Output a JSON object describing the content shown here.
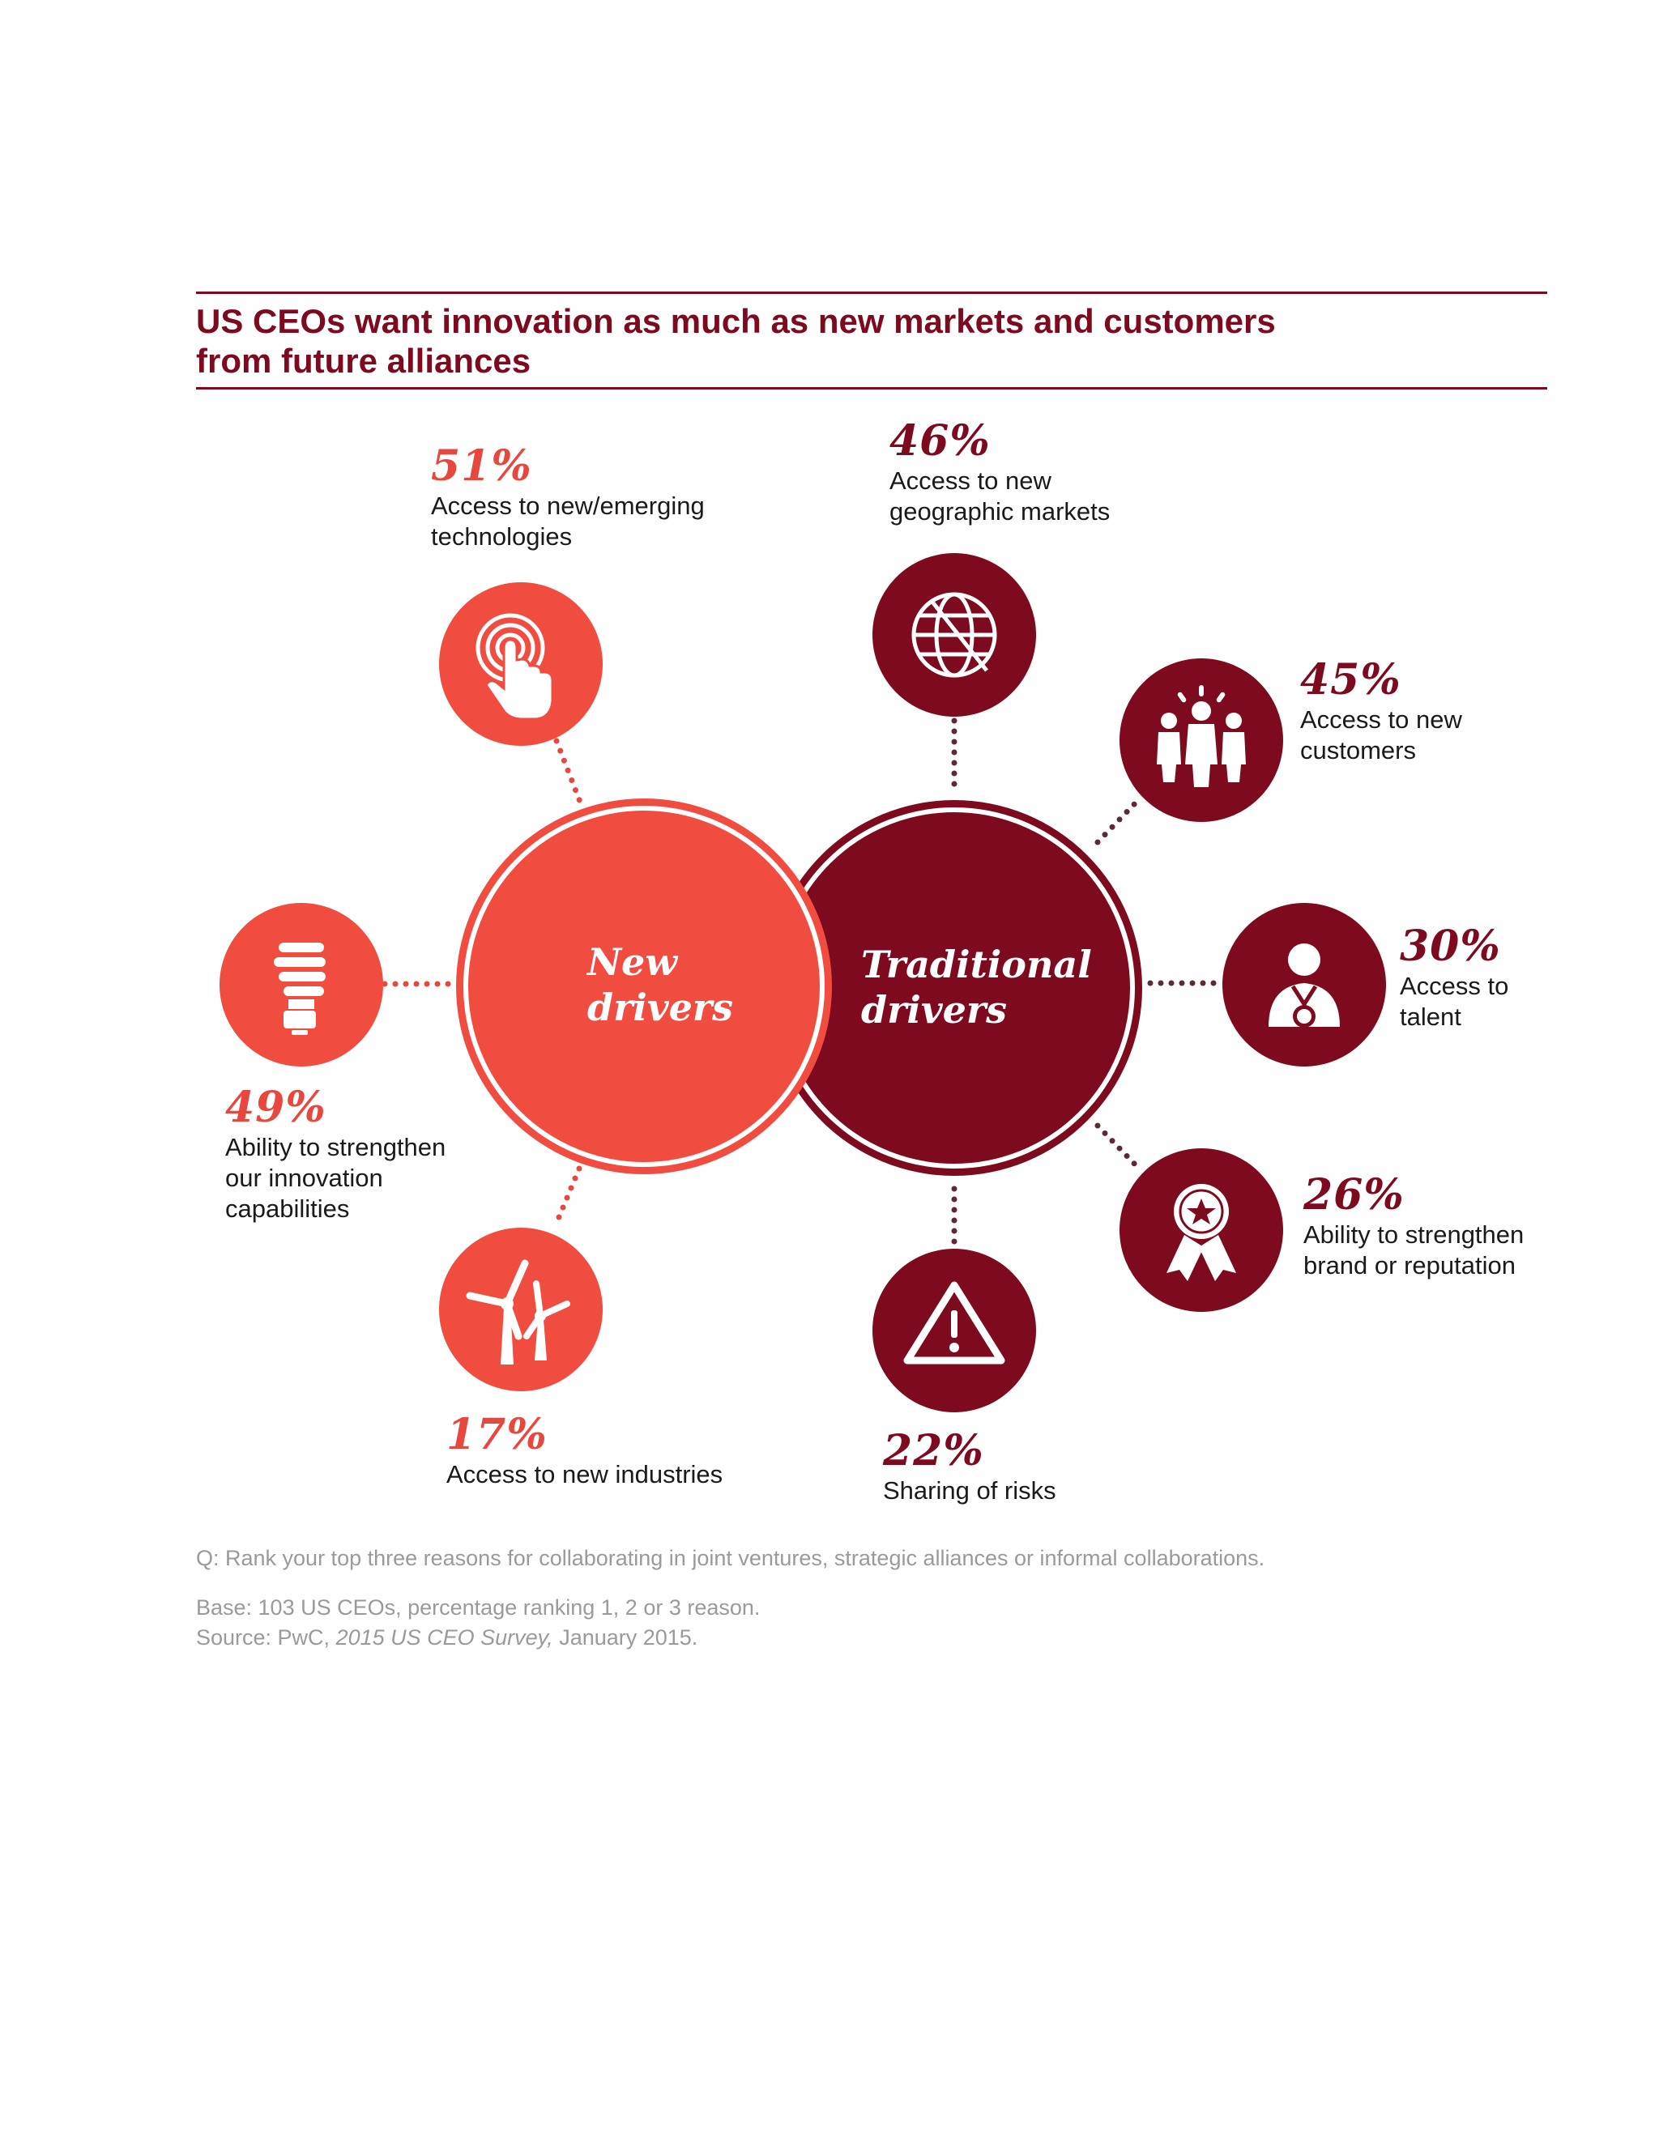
{
  "title": {
    "line1": "US CEOs want innovation as much as new markets and customers",
    "line2": "from future alliances"
  },
  "hubs": {
    "new": {
      "line1": "New",
      "line2": "drivers",
      "color": "#f04c40"
    },
    "traditional": {
      "line1": "Traditional",
      "line2": "drivers",
      "color": "#7d0a1e"
    }
  },
  "drivers": {
    "new_tech": {
      "percent": "51%",
      "value": 51,
      "group": "new",
      "icon": "touch-target-icon",
      "lines": [
        "Access to new/emerging",
        "technologies"
      ]
    },
    "innovation": {
      "percent": "49%",
      "value": 49,
      "group": "new",
      "icon": "lightbulb-icon",
      "lines": [
        "Ability to strengthen",
        "our innovation",
        "capabilities"
      ]
    },
    "industries": {
      "percent": "17%",
      "value": 17,
      "group": "new",
      "icon": "wind-turbine-icon",
      "lines": [
        "Access to new industries"
      ]
    },
    "geo": {
      "percent": "46%",
      "value": 46,
      "group": "traditional",
      "icon": "globe-icon",
      "lines": [
        "Access to new",
        "geographic markets"
      ]
    },
    "customers": {
      "percent": "45%",
      "value": 45,
      "group": "traditional",
      "icon": "people-group-icon",
      "lines": [
        "Access to new",
        "customers"
      ]
    },
    "talent": {
      "percent": "30%",
      "value": 30,
      "group": "traditional",
      "icon": "medal-person-icon",
      "lines": [
        "Access to",
        "talent"
      ]
    },
    "brand": {
      "percent": "26%",
      "value": 26,
      "group": "traditional",
      "icon": "award-ribbon-icon",
      "lines": [
        "Ability to strengthen",
        "brand or reputation"
      ]
    },
    "risks": {
      "percent": "22%",
      "value": 22,
      "group": "traditional",
      "icon": "warning-icon",
      "lines": [
        "Sharing of risks"
      ]
    }
  },
  "notes": {
    "question": "Q: Rank your top three reasons for collaborating in joint ventures, strategic alliances or informal collaborations.",
    "base": "Base: 103 US CEOs, percentage ranking 1, 2 or 3 reason.",
    "source_prefix": "Source: PwC, ",
    "source_title": "2015 US CEO Survey,",
    "source_suffix": " January 2015."
  },
  "colors": {
    "new": "#f04c40",
    "traditional": "#7d0a1e",
    "title": "#7d0a1e",
    "note": "#9a9a9a"
  }
}
